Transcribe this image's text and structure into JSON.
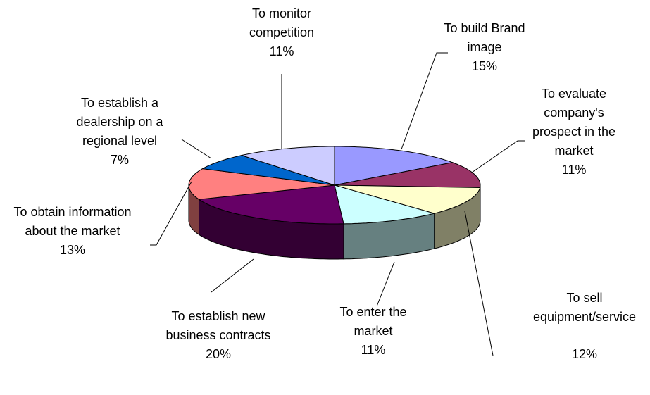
{
  "chart_data": {
    "type": "pie3d",
    "categories": [
      "To build Brand image",
      "To evaluate company's prospect in the market",
      "To sell equipment/service",
      "To enter the market",
      "To establish new business contracts",
      "To obtain information about the market",
      "To establish a dealership on a regional level",
      "To monitor competition"
    ],
    "values": [
      15,
      11,
      12,
      11,
      20,
      13,
      7,
      11
    ],
    "value_labels": [
      "15%",
      "11%",
      "12%",
      "11%",
      "20%",
      "13%",
      "7%",
      "11%"
    ],
    "colors": [
      "#9999ff",
      "#993366",
      "#ffffcc",
      "#ccffff",
      "#660066",
      "#ff8080",
      "#0066cc",
      "#ccccff"
    ]
  }
}
